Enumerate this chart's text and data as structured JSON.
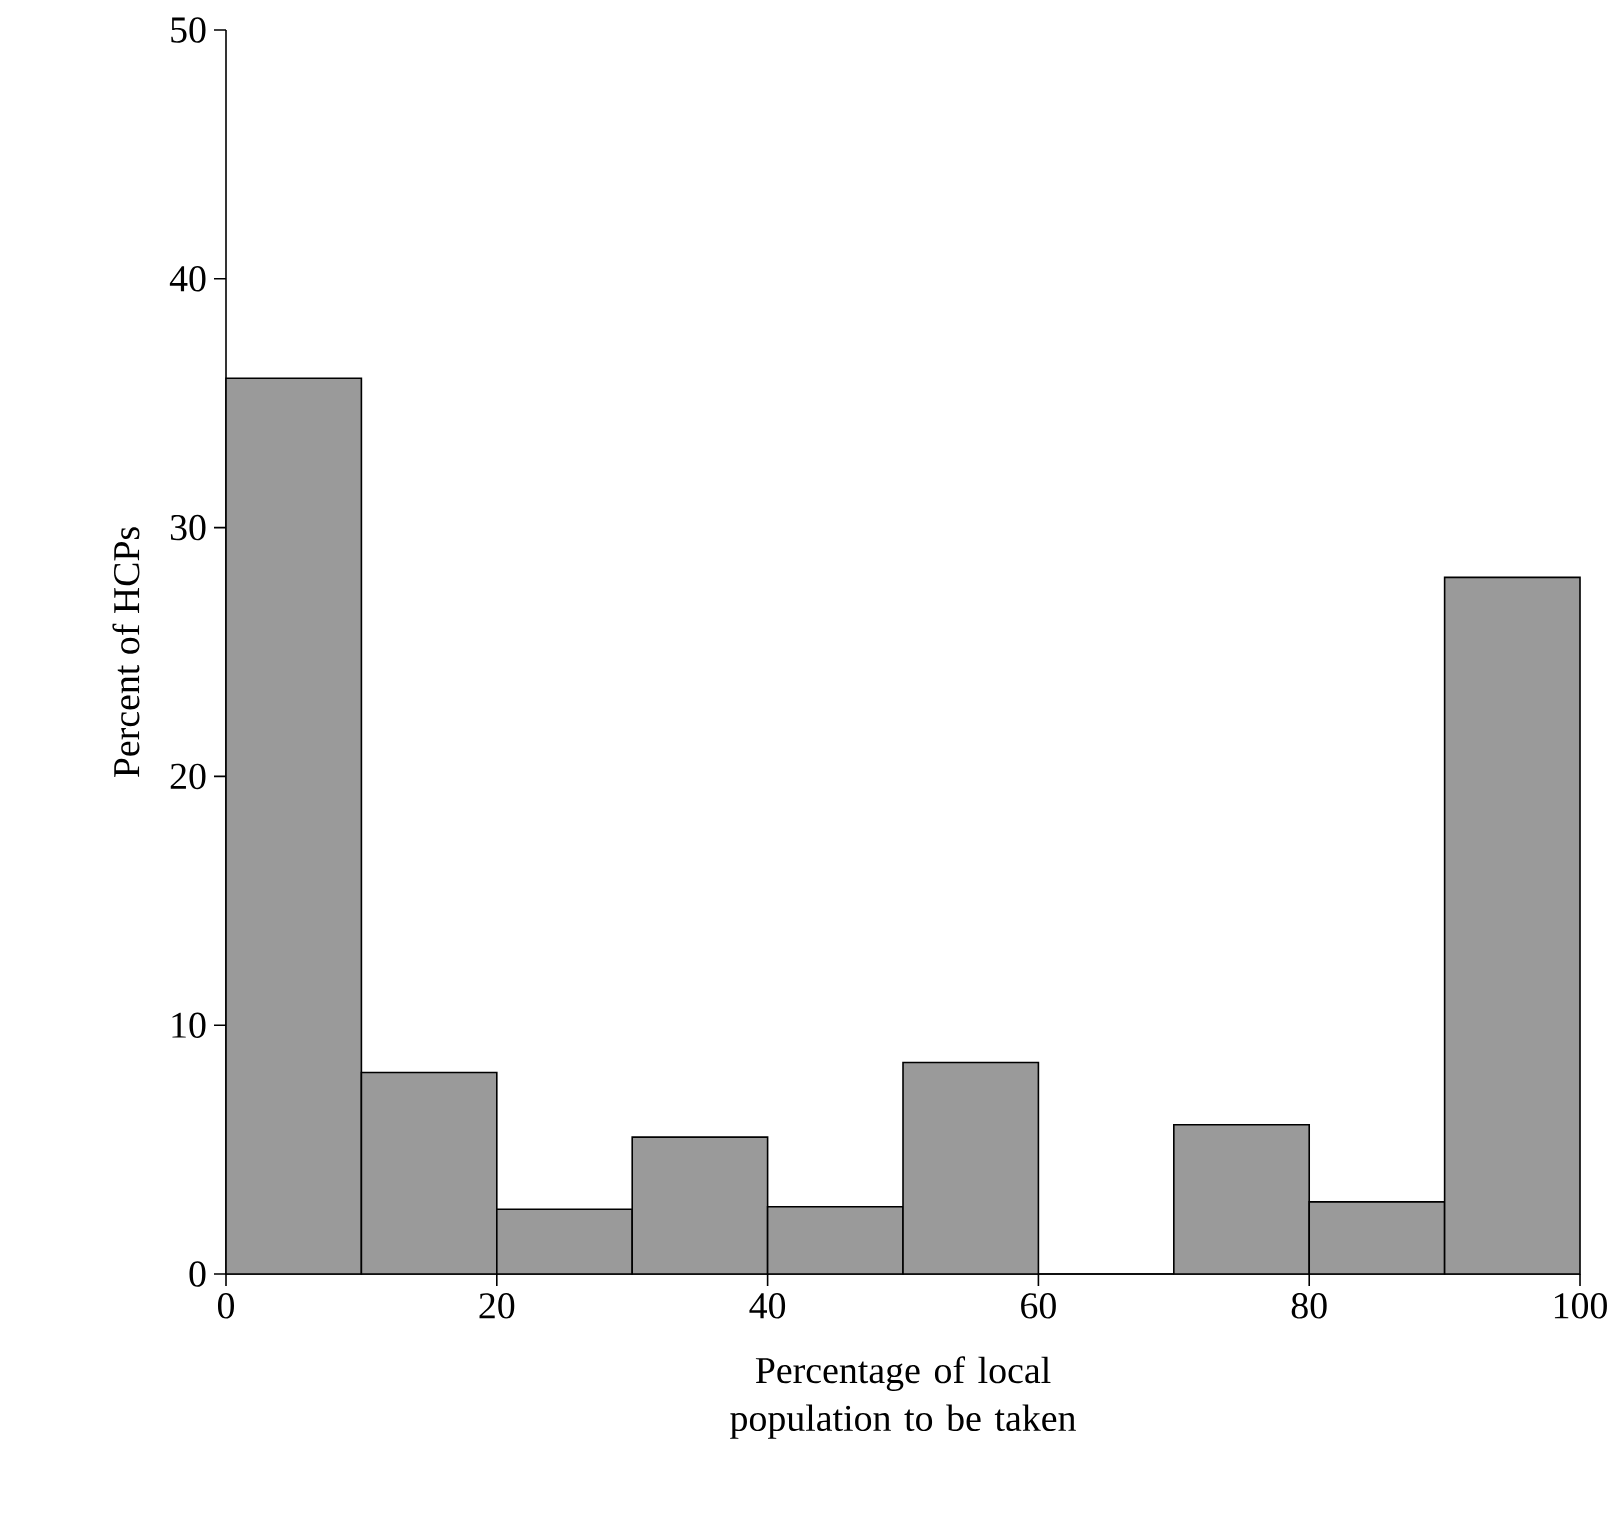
{
  "chart_data": {
    "type": "histogram",
    "xlabel": "Percentage of local population to be taken",
    "ylabel": "Percent of HCPs",
    "bins": [
      0,
      10,
      20,
      30,
      40,
      50,
      60,
      70,
      80,
      90,
      100
    ],
    "values": [
      36.0,
      8.1,
      2.6,
      5.5,
      2.7,
      8.5,
      0,
      6.0,
      2.9,
      28.0
    ],
    "color": "#9a9a9a",
    "xlim": [
      0,
      100
    ],
    "xticks": [
      0,
      20,
      40,
      60,
      80,
      100
    ],
    "ylim": [
      0,
      50
    ],
    "yticks": [
      0,
      10,
      20,
      30,
      40,
      50
    ]
  }
}
